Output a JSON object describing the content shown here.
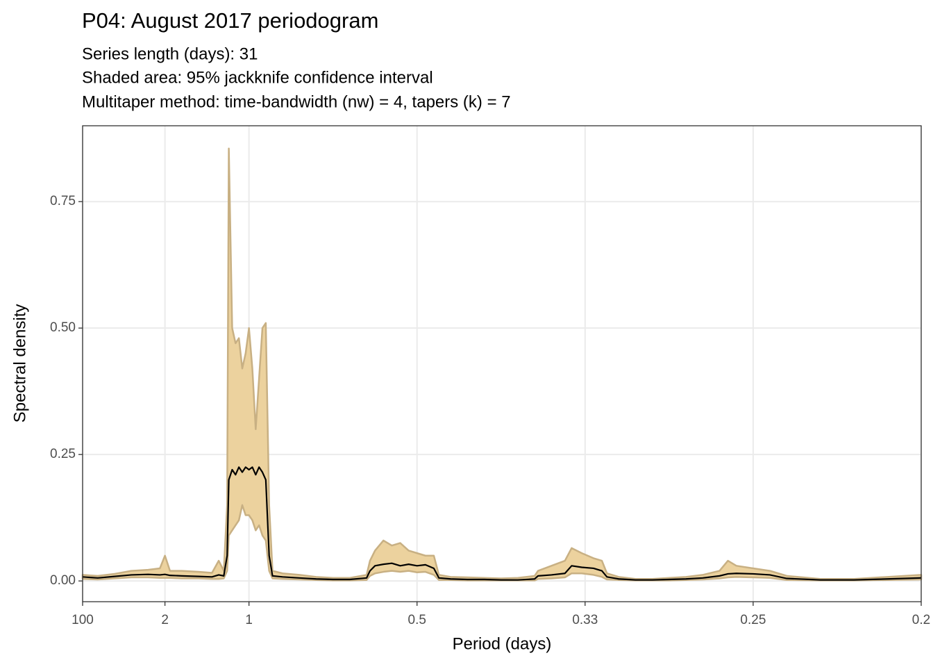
{
  "chart_data": {
    "type": "band-line",
    "title": "P04: August 2017 periodogram",
    "subtitle": [
      "Series length (days): 31",
      "Shaded area: 95% jackknife confidence interval",
      "Multitaper method: time-bandwidth (nw) = 4, tapers (k) = 7"
    ],
    "xlabel": "Period (days)",
    "ylabel": "Spectral density",
    "x": [
      0.01,
      0.1,
      0.2,
      0.3,
      0.4,
      0.47,
      0.5,
      0.53,
      0.6,
      0.7,
      0.78,
      0.82,
      0.85,
      0.87,
      0.88,
      0.9,
      0.92,
      0.94,
      0.96,
      0.98,
      1.0,
      1.02,
      1.04,
      1.06,
      1.08,
      1.1,
      1.12,
      1.14,
      1.2,
      1.3,
      1.4,
      1.5,
      1.6,
      1.7,
      1.72,
      1.75,
      1.8,
      1.85,
      1.9,
      1.95,
      2.0,
      2.05,
      2.1,
      2.13,
      2.2,
      2.3,
      2.4,
      2.5,
      2.6,
      2.7,
      2.72,
      2.8,
      2.88,
      2.92,
      2.98,
      3.05,
      3.1,
      3.13,
      3.2,
      3.3,
      3.4,
      3.5,
      3.6,
      3.7,
      3.8,
      3.85,
      3.9,
      4.0,
      4.1,
      4.2,
      4.4,
      4.6,
      4.8,
      5.0
    ],
    "values": [
      0.008,
      0.006,
      0.009,
      0.012,
      0.013,
      0.012,
      0.013,
      0.011,
      0.01,
      0.009,
      0.008,
      0.012,
      0.01,
      0.05,
      0.2,
      0.22,
      0.21,
      0.225,
      0.215,
      0.225,
      0.22,
      0.225,
      0.21,
      0.225,
      0.215,
      0.2,
      0.05,
      0.01,
      0.008,
      0.006,
      0.004,
      0.003,
      0.003,
      0.006,
      0.02,
      0.03,
      0.033,
      0.035,
      0.03,
      0.033,
      0.03,
      0.032,
      0.025,
      0.006,
      0.004,
      0.003,
      0.003,
      0.002,
      0.002,
      0.004,
      0.01,
      0.012,
      0.015,
      0.03,
      0.027,
      0.025,
      0.02,
      0.008,
      0.004,
      0.002,
      0.002,
      0.003,
      0.004,
      0.006,
      0.01,
      0.014,
      0.015,
      0.014,
      0.012,
      0.005,
      0.002,
      0.002,
      0.004,
      0.006
    ],
    "lower": [
      0.004,
      0.003,
      0.005,
      0.007,
      0.007,
      0.006,
      0.006,
      0.006,
      0.005,
      0.005,
      0.004,
      0.004,
      0.005,
      0.02,
      0.09,
      0.1,
      0.11,
      0.12,
      0.15,
      0.13,
      0.13,
      0.12,
      0.1,
      0.11,
      0.09,
      0.08,
      0.02,
      0.005,
      0.004,
      0.003,
      0.002,
      0.001,
      0.001,
      0.002,
      0.01,
      0.015,
      0.018,
      0.02,
      0.018,
      0.02,
      0.017,
      0.018,
      0.012,
      0.002,
      0.002,
      0.001,
      0.001,
      0.001,
      0.001,
      0.001,
      0.004,
      0.005,
      0.007,
      0.015,
      0.015,
      0.012,
      0.008,
      0.003,
      0.002,
      0.001,
      0.001,
      0.001,
      0.002,
      0.003,
      0.005,
      0.007,
      0.008,
      0.007,
      0.006,
      0.002,
      0.001,
      0.001,
      0.002,
      0.003
    ],
    "upper": [
      0.012,
      0.01,
      0.014,
      0.02,
      0.022,
      0.025,
      0.05,
      0.02,
      0.02,
      0.018,
      0.016,
      0.04,
      0.02,
      0.15,
      0.855,
      0.5,
      0.47,
      0.48,
      0.42,
      0.45,
      0.5,
      0.42,
      0.3,
      0.4,
      0.5,
      0.51,
      0.15,
      0.02,
      0.015,
      0.012,
      0.008,
      0.006,
      0.006,
      0.012,
      0.04,
      0.06,
      0.08,
      0.07,
      0.075,
      0.06,
      0.055,
      0.05,
      0.05,
      0.012,
      0.008,
      0.007,
      0.006,
      0.005,
      0.006,
      0.01,
      0.02,
      0.03,
      0.04,
      0.065,
      0.055,
      0.045,
      0.04,
      0.015,
      0.008,
      0.004,
      0.004,
      0.006,
      0.008,
      0.012,
      0.02,
      0.04,
      0.03,
      0.025,
      0.02,
      0.01,
      0.004,
      0.004,
      0.008,
      0.012
    ],
    "line_color": "#000000",
    "band_color": "#ecd29e",
    "band_edge_color": "#c8b083",
    "xlim": [
      0.01,
      5
    ],
    "ylim": [
      -0.041,
      0.9
    ],
    "xticks": [
      {
        "value": 0.01,
        "label": "100"
      },
      {
        "value": 0.5,
        "label": "2"
      },
      {
        "value": 1,
        "label": "1"
      },
      {
        "value": 2,
        "label": "0.5"
      },
      {
        "value": 3,
        "label": "0.33"
      },
      {
        "value": 4,
        "label": "0.25"
      },
      {
        "value": 5,
        "label": "0.2"
      }
    ],
    "yticks": [
      {
        "value": 0,
        "label": "0.00"
      },
      {
        "value": 0.25,
        "label": "0.25"
      },
      {
        "value": 0.5,
        "label": "0.50"
      },
      {
        "value": 0.75,
        "label": "0.75"
      }
    ],
    "grid": true
  }
}
